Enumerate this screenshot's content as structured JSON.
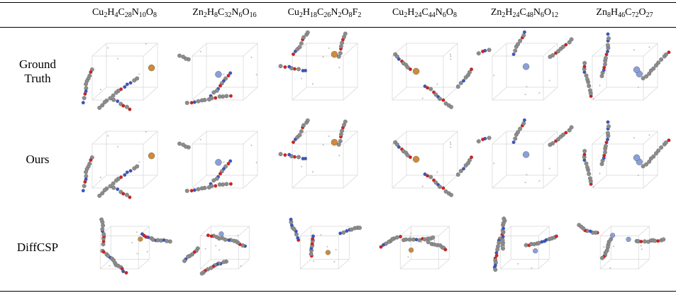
{
  "table": {
    "columns": [
      "Cu2H4C28N10O8",
      "Zn2H8C32N6O16",
      "Cu2H18C26N2O8F2",
      "Cu2H24C44N6O8",
      "Zn2H24C48N6O12",
      "Zn8H46C72O27"
    ],
    "rows": [
      "Ground Truth",
      "Ours",
      "DiffCSP"
    ]
  }
}
